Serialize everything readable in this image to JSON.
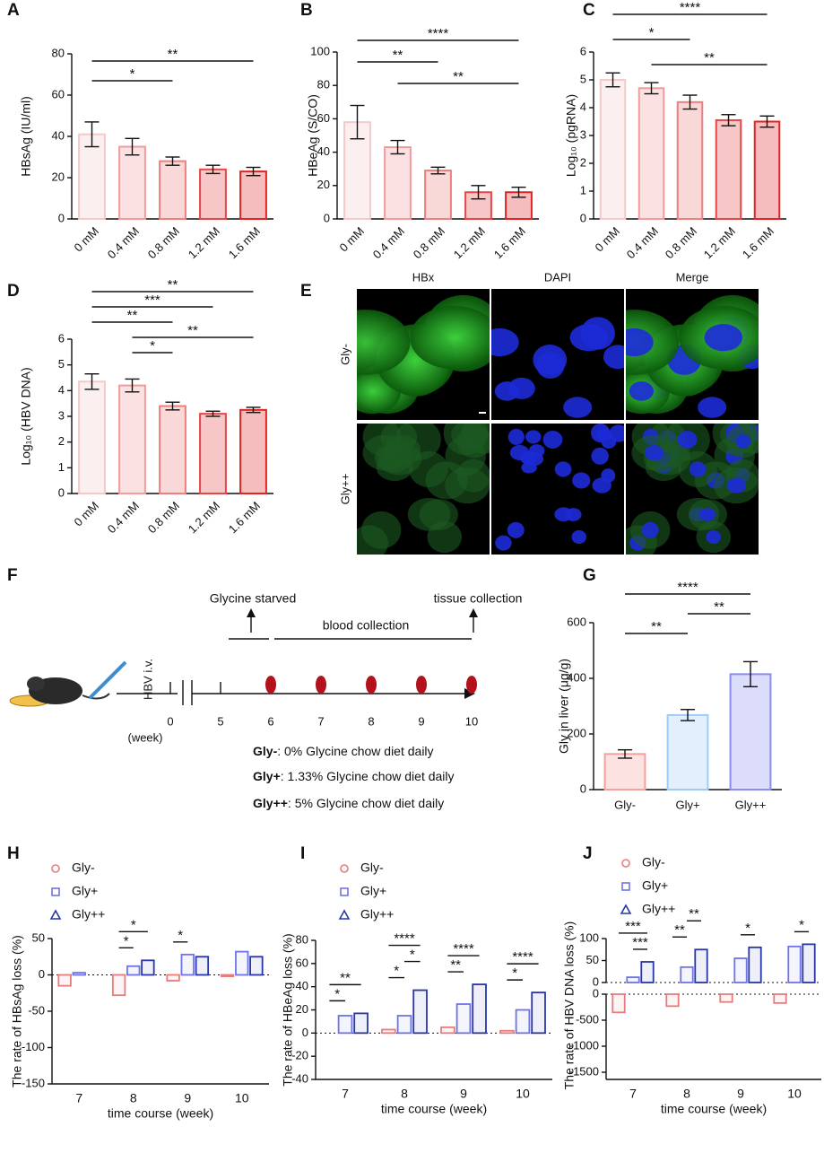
{
  "chart_data": [
    {
      "type": "bar",
      "panel": "A",
      "ylabel": "HBsAg (IU/ml)",
      "categories": [
        "0 mM",
        "0.4 mM",
        "0.8 mM",
        "1.2 mM",
        "1.6 mM"
      ],
      "values": [
        41,
        35,
        28,
        24,
        23
      ],
      "errors": [
        6,
        4,
        2,
        2,
        2
      ],
      "colors": [
        "#f6c9c9",
        "#f19b9b",
        "#ec7f7f",
        "#e54646",
        "#df2424"
      ],
      "ylim": [
        0,
        80
      ],
      "yticks": [
        0,
        20,
        40,
        60,
        80
      ],
      "annotations": [
        {
          "text": "**",
          "from": 0,
          "to": 4
        },
        {
          "text": "*",
          "from": 0,
          "to": 2
        }
      ]
    },
    {
      "type": "bar",
      "panel": "B",
      "ylabel": "HBeAg (S/CO)",
      "categories": [
        "0 mM",
        "0.4 mM",
        "0.8 mM",
        "1.2 mM",
        "1.6 mM"
      ],
      "values": [
        58,
        43,
        29,
        16,
        16
      ],
      "errors": [
        10,
        4,
        2,
        4,
        3
      ],
      "colors": [
        "#f6c9c9",
        "#f19b9b",
        "#ec7f7f",
        "#e54646",
        "#df2424"
      ],
      "ylim": [
        0,
        100
      ],
      "yticks": [
        0,
        20,
        40,
        60,
        80,
        100
      ],
      "annotations": [
        {
          "text": "****",
          "from": 0,
          "to": 4
        },
        {
          "text": "**",
          "from": 0,
          "to": 2
        },
        {
          "text": "**",
          "from": 1,
          "to": 4
        }
      ]
    },
    {
      "type": "bar",
      "panel": "C",
      "ylabel": "Log₁₀ (pgRNA)",
      "categories": [
        "0 mM",
        "0.4 mM",
        "0.8 mM",
        "1.2 mM",
        "1.6 mM"
      ],
      "values": [
        5.0,
        4.7,
        4.2,
        3.55,
        3.5
      ],
      "errors": [
        0.25,
        0.2,
        0.25,
        0.2,
        0.2
      ],
      "colors": [
        "#f6c9c9",
        "#f19b9b",
        "#ec7f7f",
        "#e54646",
        "#df2424"
      ],
      "ylim": [
        0,
        6
      ],
      "yticks": [
        0,
        1,
        2,
        3,
        4,
        5,
        6
      ],
      "annotations": [
        {
          "text": "****",
          "from": 0,
          "to": 4
        },
        {
          "text": "*",
          "from": 0,
          "to": 2
        },
        {
          "text": "**",
          "from": 1,
          "to": 4
        }
      ]
    },
    {
      "type": "bar",
      "panel": "D",
      "ylabel": "Log₁₀ (HBV DNA)",
      "categories": [
        "0 mM",
        "0.4 mM",
        "0.8 mM",
        "1.2 mM",
        "1.6 mM"
      ],
      "values": [
        4.35,
        4.2,
        3.4,
        3.1,
        3.25
      ],
      "errors": [
        0.3,
        0.25,
        0.15,
        0.1,
        0.1
      ],
      "colors": [
        "#f6c9c9",
        "#f19b9b",
        "#ec7f7f",
        "#e54646",
        "#df2424"
      ],
      "ylim": [
        0,
        6
      ],
      "yticks": [
        0,
        1,
        2,
        3,
        4,
        5,
        6
      ],
      "annotations": [
        {
          "text": "**",
          "from": 0,
          "to": 4
        },
        {
          "text": "***",
          "from": 0,
          "to": 3
        },
        {
          "text": "**",
          "from": 0,
          "to": 2
        },
        {
          "text": "**",
          "from": 1,
          "to": 4
        },
        {
          "text": "*",
          "from": 1,
          "to": 2
        }
      ]
    },
    {
      "type": "bar",
      "panel": "G",
      "ylabel": "Gly in liver (μg/g)",
      "categories": [
        "Gly-",
        "Gly+",
        "Gly++"
      ],
      "values": [
        128,
        268,
        415
      ],
      "errors": [
        15,
        20,
        45
      ],
      "colors": [
        "#f4a09c",
        "#9ecbf5",
        "#8b8cf2"
      ],
      "ylim": [
        0,
        600
      ],
      "yticks": [
        0,
        200,
        400,
        600
      ],
      "annotations": [
        {
          "text": "****",
          "from": 0,
          "to": 2
        },
        {
          "text": "**",
          "from": 1,
          "to": 2
        },
        {
          "text": "**",
          "from": 0,
          "to": 1
        }
      ]
    },
    {
      "type": "grouped_bar",
      "panel": "H",
      "ylabel": "The rate of HBsAg loss (%)",
      "xlabel": "time course (week)",
      "categories": [
        "7",
        "8",
        "9",
        "10"
      ],
      "series": [
        {
          "name": "Gly-",
          "color": "#e87b7b",
          "marker": "circle",
          "values": [
            -15,
            -28,
            -8,
            -2
          ]
        },
        {
          "name": "Gly+",
          "color": "#6e74e8",
          "marker": "square",
          "values": [
            3,
            12,
            28,
            32
          ]
        },
        {
          "name": "Gly++",
          "color": "#2836a8",
          "marker": "triangle",
          "values": [
            0,
            20,
            25,
            25
          ]
        }
      ],
      "ylim": [
        -150,
        50
      ],
      "yticks": [
        -150,
        -100,
        -50,
        0,
        50
      ],
      "annotations": [
        {
          "category": 1,
          "text": "*",
          "from": 0,
          "to": 2
        },
        {
          "category": 1,
          "text": "*",
          "from": 0,
          "to": 1
        },
        {
          "category": 2,
          "text": "*",
          "from": 0,
          "to": 1
        }
      ]
    },
    {
      "type": "grouped_bar",
      "panel": "I",
      "ylabel": "The rate of HBeAg loss (%)",
      "xlabel": "time course (week)",
      "categories": [
        "7",
        "8",
        "9",
        "10"
      ],
      "series": [
        {
          "name": "Gly-",
          "color": "#e87b7b",
          "marker": "circle",
          "values": [
            0,
            3,
            5,
            2
          ]
        },
        {
          "name": "Gly+",
          "color": "#6e74e8",
          "marker": "square",
          "values": [
            15,
            15,
            25,
            20
          ]
        },
        {
          "name": "Gly++",
          "color": "#2836a8",
          "marker": "triangle",
          "values": [
            17,
            37,
            42,
            35
          ]
        }
      ],
      "ylim": [
        -40,
        80
      ],
      "yticks": [
        -40,
        -20,
        0,
        20,
        40,
        60,
        80
      ],
      "annotations": [
        {
          "category": 0,
          "text": "**",
          "from": 0,
          "to": 2
        },
        {
          "category": 0,
          "text": "*",
          "from": 0,
          "to": 1
        },
        {
          "category": 1,
          "text": "****",
          "from": 0,
          "to": 2
        },
        {
          "category": 1,
          "text": "*",
          "from": 1,
          "to": 2
        },
        {
          "category": 1,
          "text": "*",
          "from": 0,
          "to": 1
        },
        {
          "category": 2,
          "text": "****",
          "from": 0,
          "to": 2
        },
        {
          "category": 2,
          "text": "**",
          "from": 0,
          "to": 1
        },
        {
          "category": 3,
          "text": "****",
          "from": 0,
          "to": 2
        },
        {
          "category": 3,
          "text": "*",
          "from": 0,
          "to": 1
        }
      ]
    },
    {
      "type": "broken_grouped_bar",
      "panel": "J",
      "ylabel": "The rate of HBV DNA loss (%)",
      "xlabel": "time course (week)",
      "categories": [
        "7",
        "8",
        "9",
        "10"
      ],
      "series": [
        {
          "name": "Gly-",
          "color": "#e87b7b",
          "marker": "circle",
          "values": [
            -350,
            -230,
            -150,
            -170
          ]
        },
        {
          "name": "Gly+",
          "color": "#6e74e8",
          "marker": "square",
          "values": [
            12,
            35,
            55,
            82
          ]
        },
        {
          "name": "Gly++",
          "color": "#2836a8",
          "marker": "triangle",
          "values": [
            47,
            75,
            80,
            87
          ]
        }
      ],
      "ylim": [
        0,
        100
      ],
      "yticks": [
        0,
        50,
        100
      ],
      "ylim_lower": [
        -1500,
        0
      ],
      "yticks_lower": [
        -1500,
        -1000,
        -500,
        0
      ],
      "annotations": [
        {
          "category": 0,
          "text": "***",
          "from": 0,
          "to": 2
        },
        {
          "category": 0,
          "text": "***",
          "from": 1,
          "to": 2
        },
        {
          "category": 1,
          "text": "**",
          "from": 1,
          "to": 2
        },
        {
          "category": 1,
          "text": "**",
          "from": 0,
          "to": 1
        },
        {
          "category": 2,
          "text": "*",
          "from": 1,
          "to": 2
        },
        {
          "category": 3,
          "text": "*",
          "from": 1,
          "to": 2
        }
      ]
    }
  ],
  "panel_e": {
    "label": "E",
    "columns": [
      "HBx",
      "DAPI",
      "Merge"
    ],
    "rows": [
      "Gly-",
      "Gly++"
    ]
  },
  "panel_f": {
    "label": "F",
    "injection": "HBV i.v.",
    "week_zero": "0",
    "week_unit": "(week)",
    "weeks": [
      "5",
      "6",
      "7",
      "8",
      "9",
      "10"
    ],
    "starved": "Glycine starved",
    "blood": "blood collection",
    "tissue": "tissue collection",
    "diets": [
      {
        "group": "Gly-",
        "text": ": 0% Glycine chow diet daily"
      },
      {
        "group": "Gly+",
        "text": ": 1.33% Glycine chow diet daily"
      },
      {
        "group": "Gly++",
        "text": ": 5% Glycine chow diet daily"
      }
    ]
  }
}
